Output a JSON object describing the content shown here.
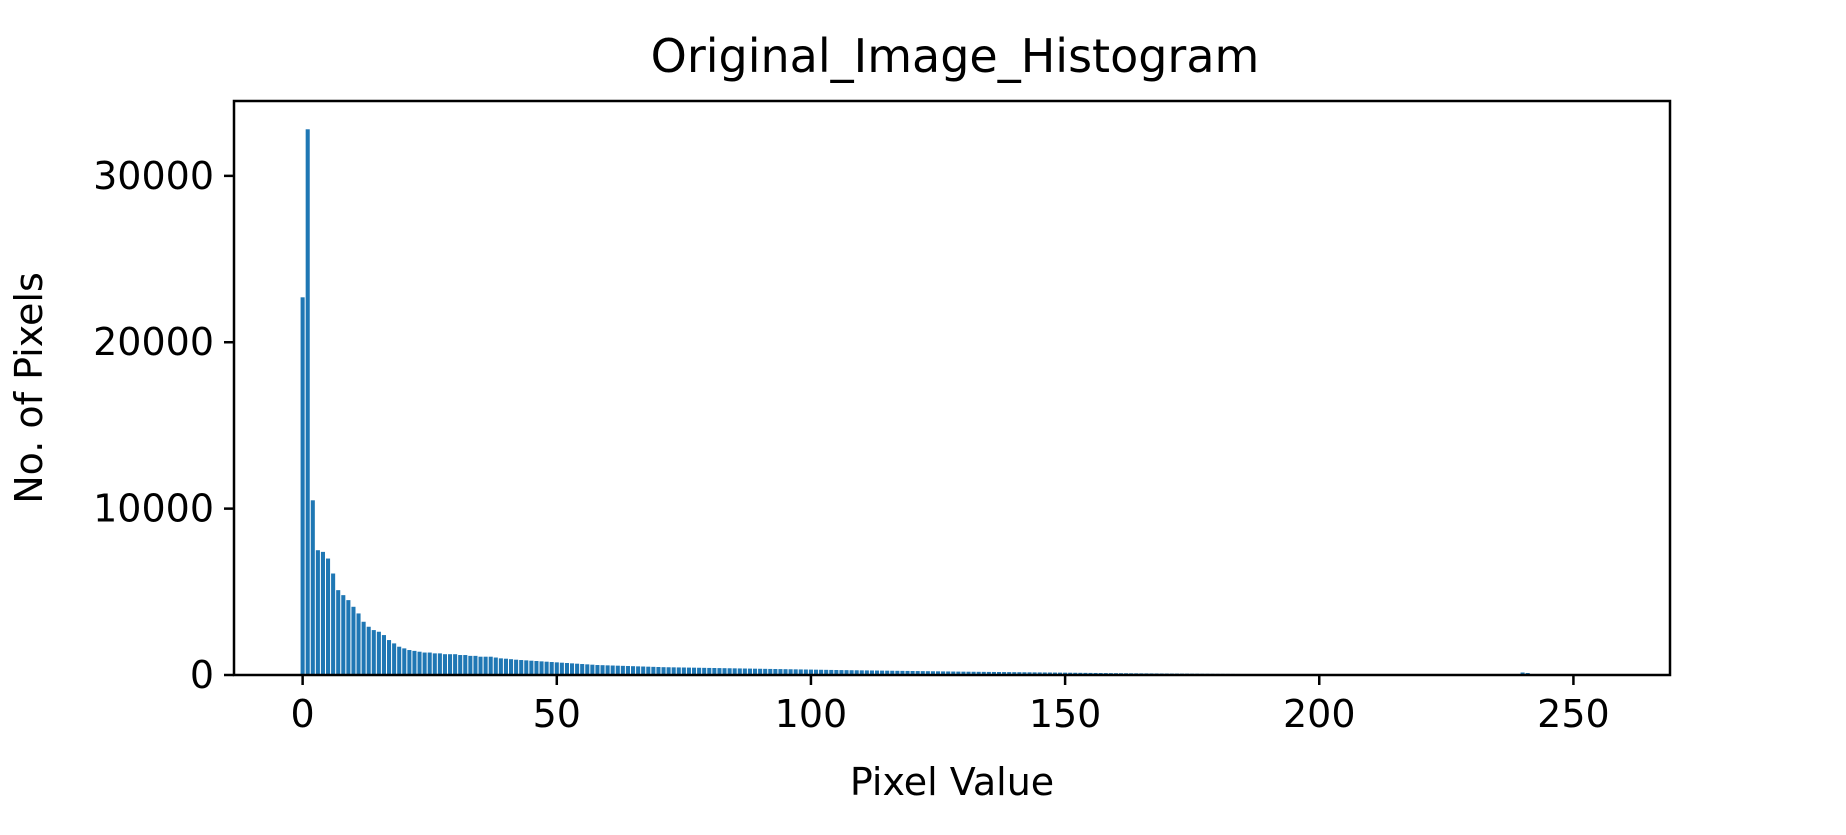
{
  "chart_data": {
    "type": "bar",
    "title": "Original_Image_Histogram",
    "xlabel": "Pixel Value",
    "ylabel": "No. of Pixels",
    "xlim": [
      -13.5,
      269
    ],
    "ylim": [
      0,
      34500
    ],
    "xticks": [
      0,
      50,
      100,
      150,
      200,
      250
    ],
    "yticks": [
      0,
      10000,
      20000,
      30000
    ],
    "grid": false,
    "bar_color": "#1f77b4",
    "x_start": 0,
    "values": [
      22700,
      32800,
      10500,
      7500,
      7400,
      7000,
      6100,
      5100,
      4800,
      4500,
      4100,
      3700,
      3200,
      2900,
      2700,
      2600,
      2400,
      2100,
      1900,
      1700,
      1600,
      1500,
      1450,
      1400,
      1350,
      1350,
      1300,
      1300,
      1250,
      1250,
      1250,
      1200,
      1200,
      1150,
      1150,
      1100,
      1100,
      1100,
      1050,
      1000,
      980,
      950,
      920,
      900,
      880,
      860,
      840,
      820,
      800,
      780,
      760,
      740,
      720,
      700,
      680,
      660,
      640,
      620,
      600,
      590,
      580,
      570,
      560,
      550,
      540,
      530,
      520,
      510,
      500,
      490,
      480,
      470,
      465,
      460,
      455,
      450,
      445,
      440,
      435,
      430,
      425,
      420,
      415,
      410,
      405,
      400,
      395,
      390,
      385,
      380,
      375,
      370,
      365,
      360,
      355,
      350,
      345,
      340,
      335,
      330,
      325,
      320,
      315,
      310,
      305,
      300,
      296,
      292,
      288,
      284,
      280,
      276,
      272,
      268,
      264,
      260,
      256,
      252,
      248,
      244,
      240,
      236,
      232,
      228,
      224,
      220,
      216,
      212,
      208,
      204,
      200,
      197,
      194,
      191,
      188,
      185,
      182,
      179,
      176,
      173,
      170,
      167,
      164,
      161,
      158,
      155,
      152,
      149,
      146,
      143,
      140,
      137,
      134,
      131,
      128,
      125,
      122,
      119,
      116,
      113,
      110,
      108,
      106,
      104,
      102,
      100,
      98,
      96,
      94,
      92,
      90,
      88,
      86,
      84,
      82,
      80,
      78,
      76,
      74,
      72,
      70,
      68,
      66,
      64,
      62,
      60,
      58,
      56,
      54,
      52,
      50,
      48,
      46,
      44,
      42,
      40,
      38,
      36,
      34,
      32,
      30,
      28,
      26,
      24,
      22,
      20,
      18,
      16,
      14,
      12,
      10,
      9,
      8,
      7,
      6,
      5,
      4,
      4,
      3,
      3,
      2,
      2,
      2,
      2,
      1,
      1,
      1,
      1,
      1,
      1,
      1,
      1,
      1,
      1,
      1,
      1,
      1,
      1,
      1,
      1,
      150,
      120,
      60,
      30,
      0,
      0,
      0,
      0,
      0,
      0,
      0,
      0,
      0,
      0,
      0,
      0
    ]
  }
}
